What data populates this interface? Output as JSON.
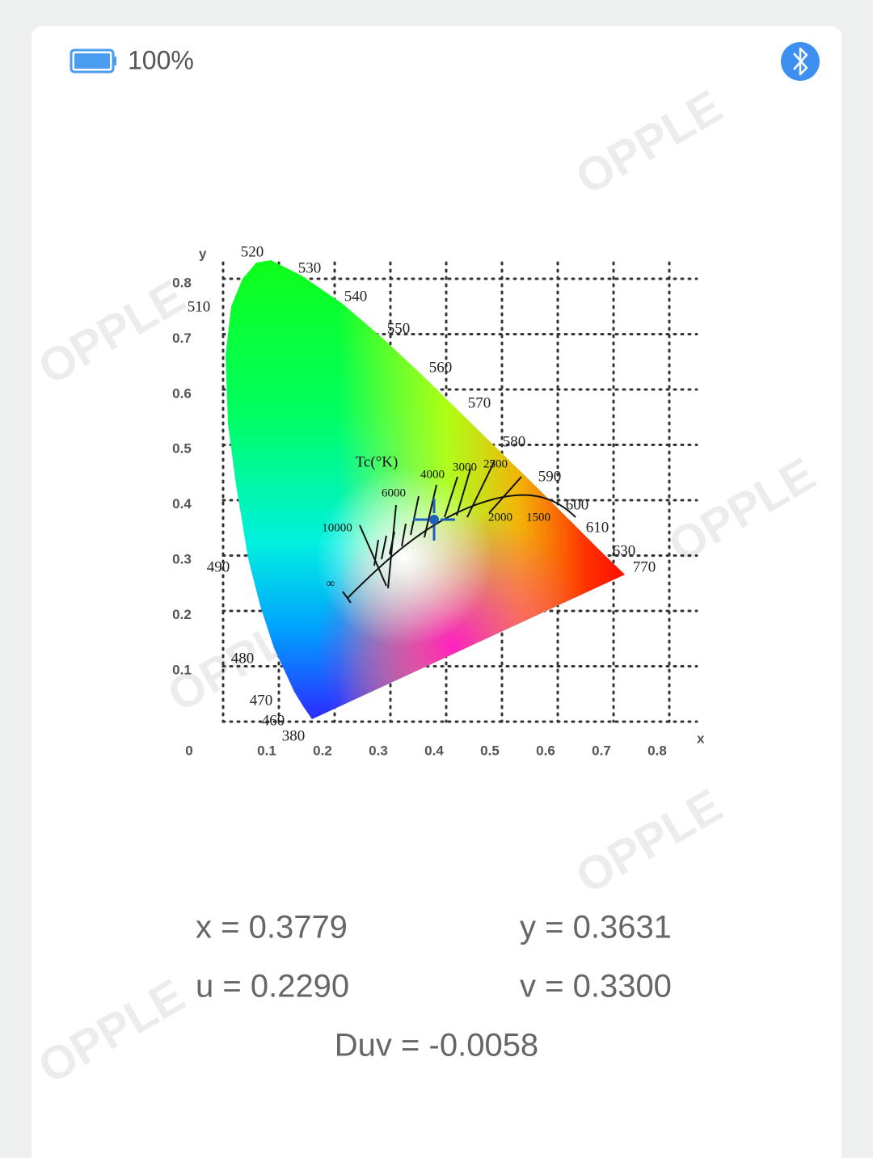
{
  "status_bar": {
    "battery": "100%"
  },
  "watermarks": [
    "OPPLE",
    "OPPLE",
    "OPPLE",
    "OPPLE",
    "OPPLE",
    "OPPLE"
  ],
  "diagram": {
    "y_axis_label": "y",
    "x_axis_label": "x",
    "origin_label": "0",
    "x_ticks": [
      "0.1",
      "0.2",
      "0.3",
      "0.4",
      "0.5",
      "0.6",
      "0.7",
      "0.8"
    ],
    "y_ticks": [
      "0.8",
      "0.7",
      "0.6",
      "0.5",
      "0.4",
      "0.3",
      "0.2",
      "0.1"
    ],
    "wavelengths": [
      "520",
      "530",
      "540",
      "550",
      "560",
      "570",
      "580",
      "590",
      "600",
      "610",
      "630",
      "770",
      "510",
      "490",
      "480",
      "470",
      "460",
      "380"
    ],
    "cct_title": "Tc(°K)",
    "cct_labels": [
      "10000",
      "6000",
      "4000",
      "3000",
      "2500",
      "2000",
      "1500",
      "∞"
    ]
  },
  "readouts": {
    "x": "x = 0.3779",
    "y": "y = 0.3631",
    "u": "u = 0.2290",
    "v": "v = 0.3300",
    "duv": "Duv = -0.0058"
  }
}
